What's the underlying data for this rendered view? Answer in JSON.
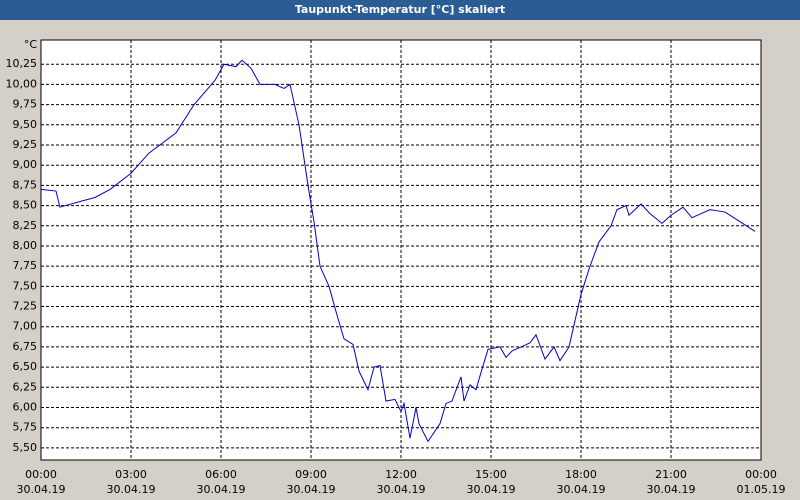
{
  "chart_data": {
    "type": "line",
    "title": "Taupunkt-Temperatur [°C] skaliert",
    "y_unit": "°C",
    "color": "#0000c8",
    "grid": true,
    "x": [
      0,
      0.5,
      0.63,
      1.3,
      1.8,
      2.3,
      3,
      3.6,
      4.5,
      5.1,
      5.8,
      6.1,
      6.5,
      6.7,
      7,
      7.3,
      7.8,
      8.1,
      8.3,
      8.6,
      8.9,
      9.1,
      9.3,
      9.6,
      9.9,
      10.1,
      10.4,
      10.6,
      10.9,
      11.1,
      11.3,
      11.5,
      11.8,
      12,
      12.1,
      12.3,
      12.5,
      12.6,
      12.9,
      13.3,
      13.5,
      13.7,
      14,
      14.1,
      14.3,
      14.5,
      14.6,
      14.9,
      15.3,
      15.5,
      15.7,
      16,
      16.3,
      16.5,
      16.8,
      17.1,
      17.3,
      17.6,
      18,
      18.3,
      18.6,
      19,
      19.2,
      19.5,
      19.6,
      20,
      20.3,
      20.7,
      21,
      21.4,
      21.7,
      22.3,
      22.8,
      23.3,
      23.8
    ],
    "values": [
      8.7,
      8.68,
      8.48,
      8.55,
      8.6,
      8.7,
      8.9,
      9.15,
      9.4,
      9.75,
      10.05,
      10.25,
      10.22,
      10.3,
      10.2,
      10.0,
      10.0,
      9.95,
      10.0,
      9.5,
      8.75,
      8.3,
      7.75,
      7.5,
      7.1,
      6.85,
      6.78,
      6.45,
      6.22,
      6.5,
      6.52,
      6.08,
      6.1,
      5.95,
      6.05,
      5.62,
      6.0,
      5.8,
      5.58,
      5.8,
      6.05,
      6.08,
      6.38,
      6.08,
      6.28,
      6.22,
      6.35,
      6.72,
      6.75,
      6.62,
      6.7,
      6.75,
      6.8,
      6.9,
      6.6,
      6.75,
      6.58,
      6.75,
      7.4,
      7.75,
      8.05,
      8.25,
      8.45,
      8.5,
      8.38,
      8.52,
      8.4,
      8.28,
      8.38,
      8.48,
      8.35,
      8.45,
      8.42,
      8.3,
      8.18
    ],
    "xlim": [
      0,
      24
    ],
    "xticks": [
      {
        "value": 0,
        "label": "00:00",
        "date": "30.04.19"
      },
      {
        "value": 3,
        "label": "03:00",
        "date": "30.04.19"
      },
      {
        "value": 6,
        "label": "06:00",
        "date": "30.04.19"
      },
      {
        "value": 9,
        "label": "09:00",
        "date": "30.04.19"
      },
      {
        "value": 12,
        "label": "12:00",
        "date": "30.04.19"
      },
      {
        "value": 15,
        "label": "15:00",
        "date": "30.04.19"
      },
      {
        "value": 18,
        "label": "18:00",
        "date": "30.04.19"
      },
      {
        "value": 21,
        "label": "21:00",
        "date": "30.04.19"
      },
      {
        "value": 24,
        "label": "00:00",
        "date": "01.05.19"
      }
    ],
    "ylim": [
      5.35,
      10.55
    ],
    "yticks": [
      {
        "value": 5.5,
        "label": "5,50"
      },
      {
        "value": 5.75,
        "label": "5,75"
      },
      {
        "value": 6.0,
        "label": "6,00"
      },
      {
        "value": 6.25,
        "label": "6,25"
      },
      {
        "value": 6.5,
        "label": "6,50"
      },
      {
        "value": 6.75,
        "label": "6,75"
      },
      {
        "value": 7.0,
        "label": "7,00"
      },
      {
        "value": 7.25,
        "label": "7,25"
      },
      {
        "value": 7.5,
        "label": "7,50"
      },
      {
        "value": 7.75,
        "label": "7,75"
      },
      {
        "value": 8.0,
        "label": "8,00"
      },
      {
        "value": 8.25,
        "label": "8,25"
      },
      {
        "value": 8.5,
        "label": "8,50"
      },
      {
        "value": 8.75,
        "label": "8,75"
      },
      {
        "value": 9.0,
        "label": "9,00"
      },
      {
        "value": 9.25,
        "label": "9,25"
      },
      {
        "value": 9.5,
        "label": "9,50"
      },
      {
        "value": 9.75,
        "label": "9,75"
      },
      {
        "value": 10.0,
        "label": "10,00"
      },
      {
        "value": 10.25,
        "label": "10,25"
      }
    ]
  }
}
